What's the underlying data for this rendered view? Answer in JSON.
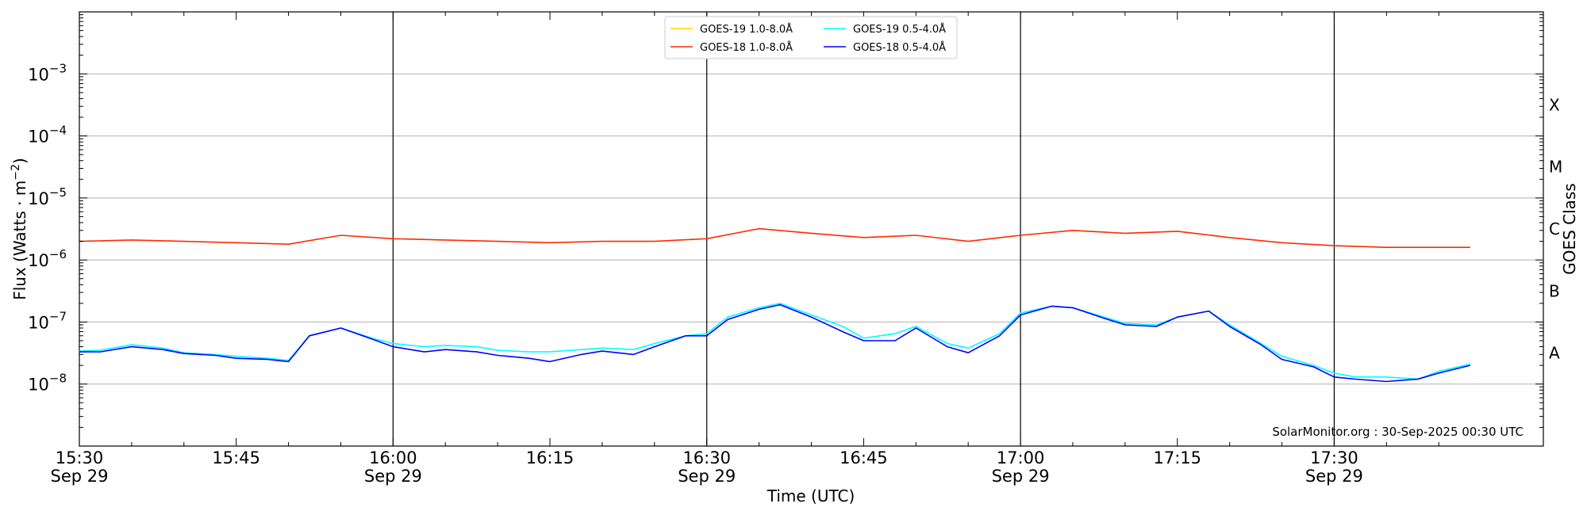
{
  "chart_data": {
    "type": "line",
    "xlabel": "Time (UTC)",
    "ylabel": "Flux (Watts · m",
    "ylabel_sup": "−2",
    "ylabel_close": ")",
    "y2label": "GOES Class",
    "yscale": "log",
    "ylim": [
      1e-09,
      0.01
    ],
    "xlim": [
      "2025-09-29 15:30",
      "2025-09-29 17:50"
    ],
    "ytick_labels": [
      {
        "base": "10",
        "exp": "−3",
        "value": 0.001
      },
      {
        "base": "10",
        "exp": "−4",
        "value": 0.0001
      },
      {
        "base": "10",
        "exp": "−5",
        "value": 1e-05
      },
      {
        "base": "10",
        "exp": "−6",
        "value": 1e-06
      },
      {
        "base": "10",
        "exp": "−7",
        "value": 1e-07
      },
      {
        "base": "10",
        "exp": "−8",
        "value": 1e-08
      }
    ],
    "xtick_labels": [
      {
        "time": "15:30",
        "date": "Sep 29"
      },
      {
        "time": "15:45",
        "date": ""
      },
      {
        "time": "16:00",
        "date": "Sep 29"
      },
      {
        "time": "16:15",
        "date": ""
      },
      {
        "time": "16:30",
        "date": "Sep 29"
      },
      {
        "time": "16:45",
        "date": ""
      },
      {
        "time": "17:00",
        "date": "Sep 29"
      },
      {
        "time": "17:15",
        "date": ""
      },
      {
        "time": "17:30",
        "date": "Sep 29"
      }
    ],
    "goes_classes": [
      {
        "label": "X",
        "level": 0.0001
      },
      {
        "label": "M",
        "level": 1e-05
      },
      {
        "label": "C",
        "level": 1e-06
      },
      {
        "label": "B",
        "level": 1e-07
      },
      {
        "label": "A",
        "level": 1e-08
      }
    ],
    "hour_lines": [
      "16:00",
      "16:30",
      "17:00",
      "17:30"
    ],
    "grid": "horizontal",
    "legend_position": "top-center",
    "annotation": "SolarMonitor.org : 30-Sep-2025 00:30 UTC",
    "series": [
      {
        "name": "GOES-19 1.0-8.0Å",
        "color": "#ffd700",
        "x": [],
        "y": []
      },
      {
        "name": "GOES-18 1.0-8.0Å",
        "color": "#ff2a00",
        "x": [
          "15:30",
          "15:35",
          "15:40",
          "15:45",
          "15:50",
          "15:55",
          "16:00",
          "16:05",
          "16:10",
          "16:15",
          "16:20",
          "16:25",
          "16:30",
          "16:35",
          "16:40",
          "16:45",
          "16:50",
          "16:55",
          "17:00",
          "17:05",
          "17:10",
          "17:15",
          "17:20",
          "17:25",
          "17:30",
          "17:35",
          "17:40",
          "17:43"
        ],
        "y": [
          2e-06,
          2.1e-06,
          2e-06,
          1.9e-06,
          1.8e-06,
          2.5e-06,
          2.2e-06,
          2.1e-06,
          2e-06,
          1.9e-06,
          2e-06,
          2e-06,
          2.2e-06,
          3.2e-06,
          2.7e-06,
          2.3e-06,
          2.5e-06,
          2e-06,
          2.5e-06,
          3e-06,
          2.7e-06,
          2.9e-06,
          2.3e-06,
          1.9e-06,
          1.7e-06,
          1.6e-06,
          1.6e-06,
          1.6e-06
        ]
      },
      {
        "name": "GOES-19 0.5-4.0Å",
        "color": "#00ffff",
        "x": [
          "15:30",
          "15:32",
          "15:35",
          "15:38",
          "15:40",
          "15:43",
          "15:45",
          "15:48",
          "15:50",
          "15:52",
          "15:55",
          "15:58",
          "16:00",
          "16:03",
          "16:05",
          "16:08",
          "16:10",
          "16:13",
          "16:15",
          "16:18",
          "16:20",
          "16:23",
          "16:25",
          "16:28",
          "16:30",
          "16:32",
          "16:35",
          "16:37",
          "16:40",
          "16:43",
          "16:45",
          "16:48",
          "16:50",
          "16:53",
          "16:55",
          "16:58",
          "17:00",
          "17:03",
          "17:05",
          "17:08",
          "17:10",
          "17:13",
          "17:15",
          "17:18",
          "17:20",
          "17:23",
          "17:25",
          "17:28",
          "17:30",
          "17:32",
          "17:35",
          "17:38",
          "17:40",
          "17:43"
        ],
        "y": [
          3.4e-08,
          3.5e-08,
          4.3e-08,
          3.8e-08,
          3.2e-08,
          3e-08,
          2.8e-08,
          2.6e-08,
          2.4e-08,
          6e-08,
          8e-08,
          5.5e-08,
          4.5e-08,
          4e-08,
          4.2e-08,
          4e-08,
          3.5e-08,
          3.3e-08,
          3.3e-08,
          3.6e-08,
          3.8e-08,
          3.6e-08,
          4.5e-08,
          6e-08,
          6.5e-08,
          1.2e-07,
          1.7e-07,
          2e-07,
          1.3e-07,
          8.5e-08,
          5.5e-08,
          6.5e-08,
          8.5e-08,
          4.5e-08,
          3.8e-08,
          6.5e-08,
          1.4e-07,
          1.8e-07,
          1.7e-07,
          1.2e-07,
          9.5e-08,
          9e-08,
          1.2e-07,
          1.5e-07,
          9e-08,
          4.5e-08,
          2.8e-08,
          2e-08,
          1.5e-08,
          1.3e-08,
          1.3e-08,
          1.2e-08,
          1.6e-08,
          2.1e-08
        ]
      },
      {
        "name": "GOES-18 0.5-4.0Å",
        "color": "#0000ff",
        "x": [
          "15:30",
          "15:32",
          "15:35",
          "15:38",
          "15:40",
          "15:43",
          "15:45",
          "15:48",
          "15:50",
          "15:52",
          "15:55",
          "15:58",
          "16:00",
          "16:03",
          "16:05",
          "16:08",
          "16:10",
          "16:13",
          "16:15",
          "16:18",
          "16:20",
          "16:23",
          "16:25",
          "16:28",
          "16:30",
          "16:32",
          "16:35",
          "16:37",
          "16:40",
          "16:43",
          "16:45",
          "16:48",
          "16:50",
          "16:53",
          "16:55",
          "16:58",
          "17:00",
          "17:03",
          "17:05",
          "17:08",
          "17:10",
          "17:13",
          "17:15",
          "17:18",
          "17:20",
          "17:23",
          "17:25",
          "17:28",
          "17:30",
          "17:32",
          "17:35",
          "17:38",
          "17:40",
          "17:43"
        ],
        "y": [
          3.3e-08,
          3.3e-08,
          4e-08,
          3.6e-08,
          3.1e-08,
          2.9e-08,
          2.6e-08,
          2.5e-08,
          2.3e-08,
          6e-08,
          8e-08,
          5.3e-08,
          4e-08,
          3.3e-08,
          3.6e-08,
          3.3e-08,
          2.9e-08,
          2.6e-08,
          2.3e-08,
          3e-08,
          3.4e-08,
          3e-08,
          4e-08,
          6e-08,
          6e-08,
          1.1e-07,
          1.6e-07,
          1.9e-07,
          1.2e-07,
          7e-08,
          5e-08,
          5e-08,
          8e-08,
          4e-08,
          3.2e-08,
          6e-08,
          1.3e-07,
          1.8e-07,
          1.7e-07,
          1.15e-07,
          9e-08,
          8.5e-08,
          1.2e-07,
          1.5e-07,
          8.5e-08,
          4.3e-08,
          2.5e-08,
          1.9e-08,
          1.3e-08,
          1.2e-08,
          1.1e-08,
          1.2e-08,
          1.5e-08,
          2e-08
        ]
      }
    ]
  }
}
